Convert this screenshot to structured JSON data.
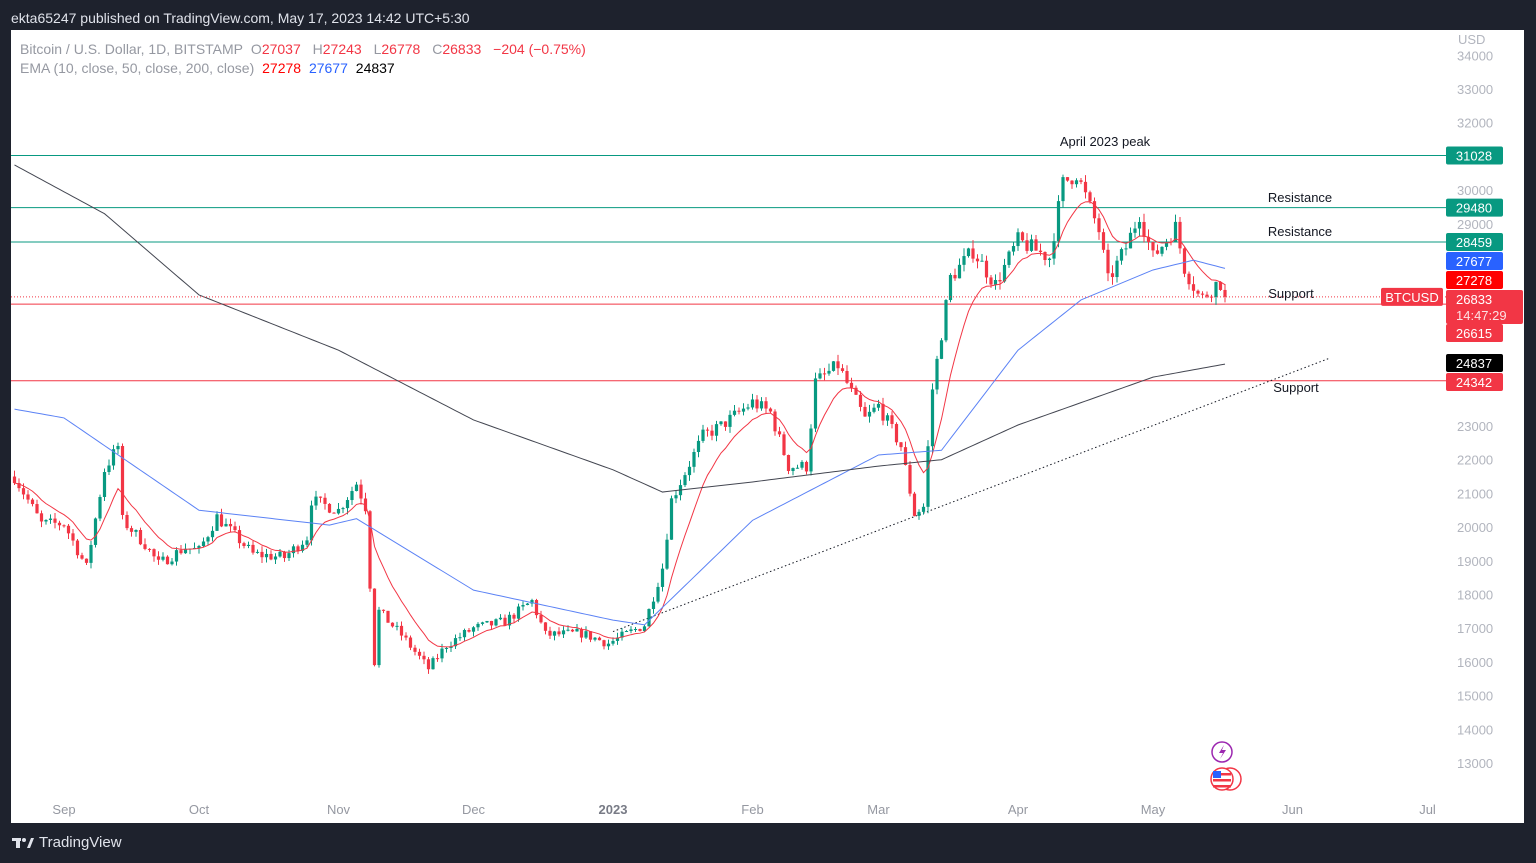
{
  "header": {
    "published": "ekta65247 published on TradingView.com, May 17, 2023 14:42 UTC+5:30"
  },
  "legend": {
    "symbol": "Bitcoin / U.S. Dollar, 1D, BITSTAMP",
    "o_label": "O",
    "o": "27037",
    "h_label": "H",
    "h": "27243",
    "l_label": "L",
    "l": "26778",
    "c_label": "C",
    "c": "26833",
    "change": "−204 (−0.75%)",
    "ema_label": "EMA (10, close, 50, close, 200, close)",
    "ema10": "27278",
    "ema50": "27677",
    "ema200": "24837"
  },
  "footer": {
    "brand": "TradingView"
  },
  "colors": {
    "up": "#089981",
    "down": "#f23645",
    "ema10": "#f23645",
    "ema50": "#5b82f5",
    "ema200": "#434651",
    "resistance": "#089981",
    "support": "#f23645"
  },
  "chart_data": {
    "type": "candlestick",
    "currency": "USD",
    "ylim": [
      12500,
      34000
    ],
    "y_ticks": [
      13000,
      14000,
      15000,
      16000,
      17000,
      18000,
      19000,
      20000,
      21000,
      22000,
      23000,
      24000,
      25000,
      26000,
      27000,
      28000,
      29000,
      30000,
      31000,
      32000,
      33000,
      34000
    ],
    "x_ticks": [
      {
        "label": "Sep",
        "date": "2022-09-01"
      },
      {
        "label": "Oct",
        "date": "2022-10-01"
      },
      {
        "label": "Nov",
        "date": "2022-11-01"
      },
      {
        "label": "Dec",
        "date": "2022-12-01"
      },
      {
        "label": "2023",
        "date": "2023-01-01",
        "bold": true
      },
      {
        "label": "Feb",
        "date": "2023-02-01"
      },
      {
        "label": "Mar",
        "date": "2023-03-01"
      },
      {
        "label": "Apr",
        "date": "2023-04-01"
      },
      {
        "label": "May",
        "date": "2023-05-01"
      },
      {
        "label": "Jun",
        "date": "2023-06-01"
      },
      {
        "label": "Jul",
        "date": "2023-07-01"
      }
    ],
    "close_path": [
      [
        "2022-08-21",
        21500
      ],
      [
        "2022-08-27",
        20100
      ],
      [
        "2022-09-01",
        20100
      ],
      [
        "2022-09-06",
        18800
      ],
      [
        "2022-09-10",
        21700
      ],
      [
        "2022-09-13",
        22400
      ],
      [
        "2022-09-14",
        20200
      ],
      [
        "2022-09-19",
        19500
      ],
      [
        "2022-09-22",
        18900
      ],
      [
        "2022-09-28",
        19400
      ],
      [
        "2022-10-01",
        19300
      ],
      [
        "2022-10-05",
        20300
      ],
      [
        "2022-10-13",
        19200
      ],
      [
        "2022-10-20",
        19100
      ],
      [
        "2022-10-25",
        19700
      ],
      [
        "2022-10-26",
        20800
      ],
      [
        "2022-11-01",
        20500
      ],
      [
        "2022-11-05",
        21300
      ],
      [
        "2022-11-07",
        20600
      ],
      [
        "2022-11-09",
        16000
      ],
      [
        "2022-11-10",
        17500
      ],
      [
        "2022-11-15",
        16800
      ],
      [
        "2022-11-21",
        15800
      ],
      [
        "2022-11-25",
        16500
      ],
      [
        "2022-12-01",
        17000
      ],
      [
        "2022-12-08",
        17200
      ],
      [
        "2022-12-14",
        17800
      ],
      [
        "2022-12-17",
        16800
      ],
      [
        "2022-12-25",
        16850
      ],
      [
        "2022-12-31",
        16550
      ],
      [
        "2023-01-08",
        17100
      ],
      [
        "2023-01-12",
        18800
      ],
      [
        "2023-01-14",
        20800
      ],
      [
        "2023-01-21",
        22700
      ],
      [
        "2023-01-25",
        23000
      ],
      [
        "2023-02-01",
        23700
      ],
      [
        "2023-02-05",
        23400
      ],
      [
        "2023-02-09",
        21800
      ],
      [
        "2023-02-13",
        21800
      ],
      [
        "2023-02-15",
        24300
      ],
      [
        "2023-02-20",
        24800
      ],
      [
        "2023-02-26",
        23200
      ],
      [
        "2023-03-01",
        23600
      ],
      [
        "2023-03-06",
        22400
      ],
      [
        "2023-03-09",
        20400
      ],
      [
        "2023-03-11",
        20600
      ],
      [
        "2023-03-13",
        24100
      ],
      [
        "2023-03-17",
        27400
      ],
      [
        "2023-03-22",
        28200
      ],
      [
        "2023-03-27",
        27200
      ],
      [
        "2023-04-01",
        28500
      ],
      [
        "2023-04-08",
        28000
      ],
      [
        "2023-04-11",
        30200
      ],
      [
        "2023-04-14",
        30500
      ],
      [
        "2023-04-19",
        28800
      ],
      [
        "2023-04-21",
        27300
      ],
      [
        "2023-04-25",
        28300
      ],
      [
        "2023-04-28",
        29300
      ],
      [
        "2023-05-01",
        28000
      ],
      [
        "2023-05-06",
        28900
      ],
      [
        "2023-05-08",
        27700
      ],
      [
        "2023-05-11",
        26900
      ],
      [
        "2023-05-12",
        26800
      ],
      [
        "2023-05-15",
        27200
      ],
      [
        "2023-05-16",
        27037
      ],
      [
        "2023-05-17",
        26833
      ]
    ],
    "ema50_path": [
      [
        "2022-08-21",
        23500
      ],
      [
        "2022-09-01",
        23240
      ],
      [
        "2022-10-01",
        20500
      ],
      [
        "2022-10-30",
        20060
      ],
      [
        "2022-11-05",
        20250
      ],
      [
        "2022-12-01",
        18130
      ],
      [
        "2023-01-01",
        17240
      ],
      [
        "2023-01-08",
        17100
      ],
      [
        "2023-02-01",
        20200
      ],
      [
        "2023-03-01",
        22140
      ],
      [
        "2023-03-15",
        22280
      ],
      [
        "2023-04-01",
        25250
      ],
      [
        "2023-04-15",
        26740
      ],
      [
        "2023-05-01",
        27630
      ],
      [
        "2023-05-10",
        27920
      ],
      [
        "2023-05-17",
        27677
      ]
    ],
    "ema200_path": [
      [
        "2022-08-21",
        30745
      ],
      [
        "2022-09-10",
        29300
      ],
      [
        "2022-10-01",
        26890
      ],
      [
        "2022-11-01",
        25250
      ],
      [
        "2022-12-01",
        23180
      ],
      [
        "2023-01-01",
        21700
      ],
      [
        "2023-01-12",
        21040
      ],
      [
        "2023-02-01",
        21340
      ],
      [
        "2023-03-01",
        21810
      ],
      [
        "2023-03-15",
        22000
      ],
      [
        "2023-04-01",
        23030
      ],
      [
        "2023-05-01",
        24450
      ],
      [
        "2023-05-17",
        24837
      ]
    ],
    "levels": [
      {
        "price": 31028,
        "label": "31028",
        "kind": "resistance",
        "text": "April 2023 peak"
      },
      {
        "price": 29480,
        "label": "29480",
        "kind": "resistance",
        "text": "Resistance"
      },
      {
        "price": 28459,
        "label": "28459",
        "kind": "resistance",
        "text": "Resistance"
      },
      {
        "price": 26615,
        "label": "26615",
        "kind": "support",
        "text": "Support"
      },
      {
        "price": 24342,
        "label": "24342",
        "kind": "support",
        "text": "Support"
      }
    ],
    "trendline": [
      [
        "2023-01-01",
        16900
      ],
      [
        "2023-06-09",
        25000
      ]
    ],
    "price_tags": [
      {
        "label": "27677",
        "color": "#2962ff"
      },
      {
        "label": "27278",
        "color": "#ff0000"
      },
      {
        "label": "24837",
        "color": "#000000"
      }
    ],
    "last_price": {
      "symbol": "BTCUSD",
      "price": 26833,
      "label": "26833",
      "countdown": "14:47:29"
    }
  }
}
